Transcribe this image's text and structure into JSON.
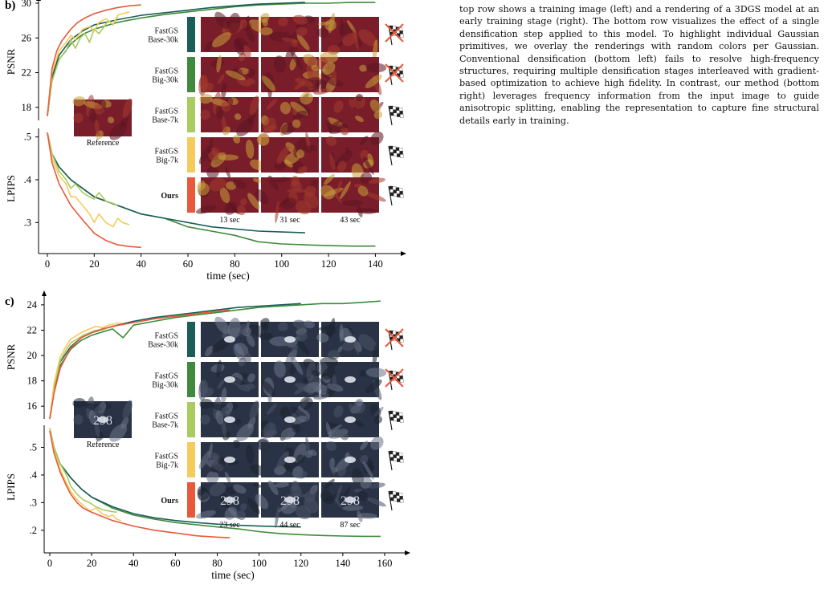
{
  "caption": {
    "text": "top row shows a training image (left) and a rendering of a 3DGS model at an early training stage (right). The bottom row visualizes the effect of a single densification step applied to this model. To highlight individual Gaussian primitives, we overlay the renderings with random colors per Gaussian. Conventional densification (bottom left) fails to resolve high-frequency structures, requiring multiple densification stages interleaved with gradient-based optimization to achieve high fidelity. In contrast, our method (bottom right) leverages frequency information from the input image to guide anisotropic splitting, enabling the representation to capture fine structural details early in training."
  },
  "colors": {
    "base30": "#1b5e57",
    "big30": "#3f8a3c",
    "base7": "#a9cb5f",
    "big7": "#f5cb5c",
    "ours": "#e8583a"
  },
  "methods": [
    {
      "key": "base30",
      "label": "FastGS Base-30k",
      "lines": [
        "FastGS",
        "Base-30k"
      ],
      "bold": false,
      "finish": "crossed-flag-icon"
    },
    {
      "key": "big30",
      "label": "FastGS Big-30k",
      "lines": [
        "FastGS",
        "Big-30k"
      ],
      "bold": false,
      "finish": "crossed-flag-icon"
    },
    {
      "key": "base7",
      "label": "FastGS Base-7k",
      "lines": [
        "FastGS",
        "Base-7k"
      ],
      "bold": false,
      "finish": "checkered-flag-icon"
    },
    {
      "key": "big7",
      "label": "FastGS Big-7k",
      "lines": [
        "FastGS",
        "Big-7k"
      ],
      "bold": false,
      "finish": "checkered-flag-icon"
    },
    {
      "key": "ours",
      "label": "Ours",
      "lines": [
        "Ours"
      ],
      "bold": true,
      "finish": "checkered-flag-icon"
    }
  ],
  "chart_data": [
    {
      "type": "line",
      "panel_label": "b)",
      "xlabel": "time (sec)",
      "xlim": [
        0,
        145
      ],
      "xticks": [
        0,
        20,
        40,
        60,
        80,
        100,
        120,
        140
      ],
      "reference_label": "Reference",
      "time_labels": [
        "13 sec",
        "31 sec",
        "43 sec"
      ],
      "psnr": {
        "ylabel": "PSNR",
        "ylim": [
          16.5,
          30
        ],
        "yticks": [
          18,
          22,
          26,
          30
        ],
        "series": [
          {
            "key": "base30",
            "x": [
              0,
              2,
              5,
              10,
              15,
              20,
              30,
              40,
              50,
              60,
              70,
              80,
              90,
              100,
              110
            ],
            "y": [
              17.0,
              21.5,
              24.0,
              25.8,
              26.8,
              27.5,
              28.1,
              28.6,
              28.9,
              29.2,
              29.5,
              29.7,
              29.9,
              30.0,
              30.1
            ]
          },
          {
            "key": "big30",
            "x": [
              0,
              2,
              5,
              10,
              15,
              20,
              30,
              40,
              50,
              60,
              70,
              80,
              90,
              100,
              110,
              120,
              130,
              140
            ],
            "y": [
              17.0,
              21.2,
              23.5,
              25.3,
              26.4,
              27.0,
              27.8,
              28.3,
              28.7,
              29.0,
              29.3,
              29.6,
              29.8,
              29.9,
              30.0,
              30.0,
              30.1,
              30.1
            ]
          },
          {
            "key": "base7",
            "x": [
              0,
              2,
              5,
              8,
              10,
              12,
              14,
              16,
              18,
              20,
              22,
              24,
              26,
              28,
              30
            ],
            "y": [
              17.0,
              21.0,
              23.5,
              24.5,
              25.8,
              24.8,
              26.0,
              26.5,
              25.5,
              27.0,
              26.5,
              27.2,
              28.0,
              27.5,
              28.5
            ]
          },
          {
            "key": "big7",
            "x": [
              0,
              2,
              5,
              8,
              10,
              12,
              15,
              18,
              20,
              22,
              25,
              28,
              30,
              32,
              35
            ],
            "y": [
              17.0,
              22.0,
              24.5,
              25.5,
              26.3,
              25.8,
              27.0,
              27.3,
              26.8,
              27.8,
              28.2,
              27.6,
              28.6,
              28.8,
              29.0
            ]
          },
          {
            "key": "ours",
            "x": [
              0,
              2,
              4,
              6,
              8,
              10,
              13,
              16,
              20,
              25,
              30,
              35,
              40
            ],
            "y": [
              17.0,
              22.5,
              24.5,
              25.6,
              26.3,
              27.0,
              27.8,
              28.3,
              28.8,
              29.2,
              29.5,
              29.7,
              29.8
            ]
          }
        ]
      },
      "lpips": {
        "ylabel": "LPIPS",
        "ylim": [
          0.235,
          0.52
        ],
        "yticks": [
          0.3,
          0.4,
          0.5
        ],
        "ytick_labels": [
          ".3",
          ".4",
          ".5"
        ],
        "series": [
          {
            "key": "base30",
            "x": [
              0,
              2,
              5,
              10,
              15,
              20,
              30,
              40,
              50,
              60,
              70,
              80,
              90,
              100,
              110
            ],
            "y": [
              0.51,
              0.46,
              0.43,
              0.4,
              0.38,
              0.36,
              0.34,
              0.32,
              0.31,
              0.3,
              0.29,
              0.285,
              0.28,
              0.278,
              0.276
            ]
          },
          {
            "key": "big30",
            "x": [
              0,
              2,
              5,
              10,
              15,
              20,
              30,
              40,
              50,
              60,
              70,
              80,
              90,
              100,
              110,
              120,
              130,
              140
            ],
            "y": [
              0.51,
              0.46,
              0.43,
              0.4,
              0.38,
              0.36,
              0.34,
              0.32,
              0.31,
              0.29,
              0.28,
              0.27,
              0.255,
              0.25,
              0.248,
              0.246,
              0.245,
              0.245
            ]
          },
          {
            "key": "base7",
            "x": [
              0,
              2,
              5,
              8,
              10,
              12,
              15,
              18,
              20,
              22,
              25,
              28,
              30
            ],
            "y": [
              0.51,
              0.46,
              0.42,
              0.4,
              0.38,
              0.39,
              0.37,
              0.36,
              0.355,
              0.37,
              0.35,
              0.345,
              0.34
            ]
          },
          {
            "key": "big7",
            "x": [
              0,
              2,
              5,
              8,
              10,
              12,
              15,
              18,
              20,
              22,
              25,
              28,
              30,
              32,
              35
            ],
            "y": [
              0.51,
              0.45,
              0.41,
              0.39,
              0.36,
              0.36,
              0.34,
              0.32,
              0.3,
              0.32,
              0.3,
              0.29,
              0.31,
              0.3,
              0.295
            ]
          },
          {
            "key": "ours",
            "x": [
              0,
              2,
              5,
              8,
              10,
              13,
              16,
              20,
              25,
              30,
              35,
              40
            ],
            "y": [
              0.51,
              0.44,
              0.39,
              0.36,
              0.34,
              0.32,
              0.3,
              0.275,
              0.258,
              0.248,
              0.244,
              0.242
            ]
          }
        ]
      }
    },
    {
      "type": "line",
      "panel_label": "c)",
      "xlabel": "time (sec)",
      "xlim": [
        0,
        165
      ],
      "xticks": [
        0,
        20,
        40,
        60,
        80,
        100,
        120,
        140,
        160
      ],
      "reference_label": "Reference",
      "reference_number": "298",
      "time_labels": [
        "23 sec",
        "44 sec",
        "87 sec"
      ],
      "psnr": {
        "ylabel": "PSNR",
        "ylim": [
          15,
          24.5
        ],
        "yticks": [
          16,
          18,
          20,
          22,
          24
        ],
        "series": [
          {
            "key": "base30",
            "x": [
              0,
              2,
              5,
              10,
              15,
              20,
              30,
              40,
              50,
              60,
              70,
              80,
              90,
              100,
              110,
              120
            ],
            "y": [
              15.0,
              17.5,
              19.5,
              20.7,
              21.4,
              21.8,
              22.3,
              22.7,
              23.0,
              23.2,
              23.4,
              23.6,
              23.8,
              23.9,
              24.0,
              24.1
            ]
          },
          {
            "key": "big30",
            "x": [
              0,
              2,
              5,
              10,
              15,
              20,
              30,
              35,
              40,
              50,
              60,
              70,
              80,
              90,
              100,
              110,
              120,
              130,
              140,
              150,
              158
            ],
            "y": [
              15.0,
              17.2,
              19.2,
              20.5,
              21.2,
              21.6,
              22.1,
              21.4,
              22.4,
              22.7,
              23.0,
              23.2,
              23.4,
              23.6,
              23.8,
              23.9,
              24.0,
              24.1,
              24.1,
              24.2,
              24.3
            ]
          },
          {
            "key": "base7",
            "x": [
              0,
              2,
              5,
              8,
              10,
              13,
              16,
              19,
              22,
              25,
              28,
              31
            ],
            "y": [
              15.0,
              17.5,
              19.6,
              20.5,
              21.0,
              21.3,
              21.6,
              21.8,
              22.0,
              22.0,
              22.2,
              22.3
            ]
          },
          {
            "key": "big7",
            "x": [
              0,
              2,
              5,
              8,
              10,
              13,
              16,
              19,
              22,
              25,
              28,
              31,
              34
            ],
            "y": [
              15.0,
              17.8,
              19.9,
              20.8,
              21.3,
              21.6,
              21.9,
              22.1,
              22.3,
              22.2,
              22.4,
              22.5,
              22.6
            ]
          },
          {
            "key": "ours",
            "x": [
              0,
              2,
              5,
              10,
              15,
              20,
              25,
              30,
              40,
              50,
              60,
              70,
              80,
              86
            ],
            "y": [
              15.0,
              17.0,
              19.0,
              20.6,
              21.4,
              21.8,
              22.1,
              22.3,
              22.6,
              22.9,
              23.1,
              23.3,
              23.5,
              23.6
            ]
          }
        ]
      },
      "lpips": {
        "ylabel": "LPIPS",
        "ylim": [
          0.15,
          0.58
        ],
        "yticks": [
          0.2,
          0.3,
          0.4,
          0.5
        ],
        "ytick_labels": [
          ".2",
          ".3",
          ".4",
          ".5"
        ],
        "series": [
          {
            "key": "base30",
            "x": [
              0,
              2,
              5,
              10,
              15,
              20,
              30,
              40,
              50,
              60,
              70,
              80,
              90,
              100,
              110,
              120
            ],
            "y": [
              0.57,
              0.5,
              0.44,
              0.39,
              0.35,
              0.32,
              0.285,
              0.26,
              0.245,
              0.235,
              0.228,
              0.222,
              0.218,
              0.215,
              0.213,
              0.212
            ]
          },
          {
            "key": "big30",
            "x": [
              0,
              2,
              5,
              10,
              15,
              20,
              30,
              40,
              50,
              60,
              70,
              80,
              90,
              100,
              110,
              120,
              130,
              140,
              150,
              158
            ],
            "y": [
              0.57,
              0.5,
              0.44,
              0.39,
              0.35,
              0.32,
              0.28,
              0.255,
              0.24,
              0.228,
              0.22,
              0.212,
              0.205,
              0.195,
              0.188,
              0.184,
              0.181,
              0.179,
              0.178,
              0.178
            ]
          },
          {
            "key": "base7",
            "x": [
              0,
              2,
              5,
              8,
              10,
              13,
              16,
              19,
              22,
              25,
              28,
              32
            ],
            "y": [
              0.57,
              0.5,
              0.44,
              0.4,
              0.36,
              0.33,
              0.31,
              0.3,
              0.285,
              0.275,
              0.27,
              0.265
            ]
          },
          {
            "key": "big7",
            "x": [
              0,
              2,
              5,
              8,
              10,
              13,
              16,
              19,
              22,
              25,
              28,
              30,
              32,
              34
            ],
            "y": [
              0.57,
              0.49,
              0.42,
              0.37,
              0.34,
              0.31,
              0.29,
              0.27,
              0.28,
              0.26,
              0.25,
              0.255,
              0.24,
              0.235
            ]
          },
          {
            "key": "ours",
            "x": [
              0,
              2,
              5,
              8,
              10,
              13,
              16,
              20,
              25,
              30,
              40,
              50,
              60,
              70,
              80,
              86
            ],
            "y": [
              0.56,
              0.48,
              0.41,
              0.36,
              0.33,
              0.3,
              0.28,
              0.265,
              0.25,
              0.235,
              0.215,
              0.2,
              0.19,
              0.18,
              0.175,
              0.173
            ]
          }
        ]
      }
    }
  ]
}
